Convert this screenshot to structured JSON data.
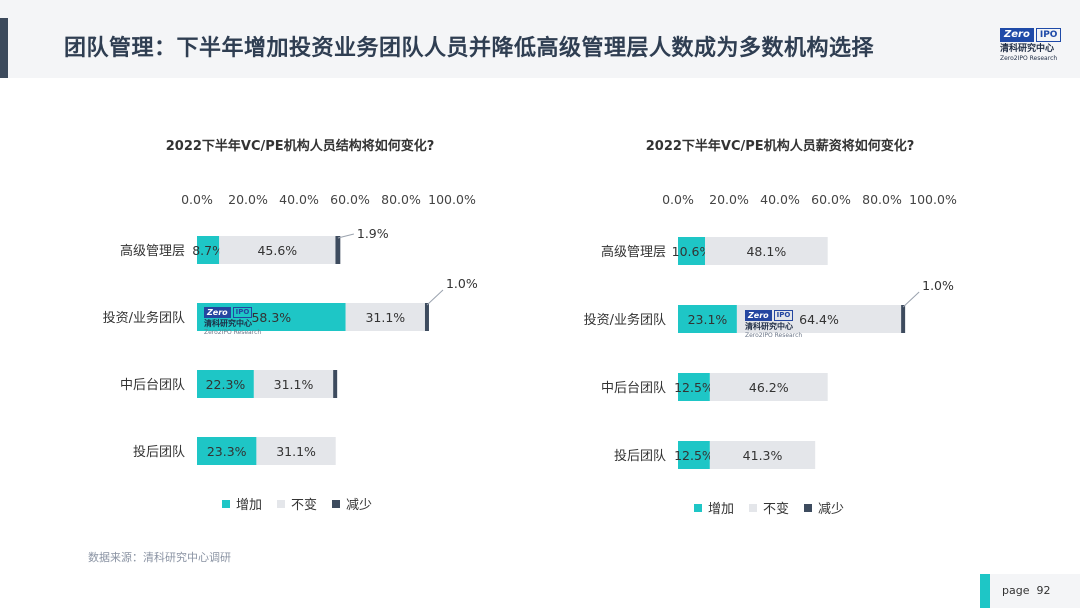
{
  "header": {
    "title": "团队管理：下半年增加投资业务团队人员并降低高级管理层人数成为多数机构选择"
  },
  "logo": {
    "zero": "Zero",
    "ipo": "IPO",
    "cn": "清科研究中心",
    "en": "Zero2IPO Research"
  },
  "colors": {
    "increase": "#1ec6c6",
    "unchanged": "#e4e6ea",
    "decrease": "#3d4b5e"
  },
  "chart_data": [
    {
      "type": "bar",
      "orientation": "horizontal",
      "stacked": true,
      "title": "2022下半年VC/PE机构人员结构将如何变化?",
      "categories": [
        "高级管理层",
        "投资/业务团队",
        "中后台团队",
        "投后团队"
      ],
      "x_ticks": [
        "0.0%",
        "20.0%",
        "40.0%",
        "60.0%",
        "80.0%",
        "100.0%"
      ],
      "xlim": [
        0,
        100
      ],
      "legend_position": "bottom",
      "series": [
        {
          "name": "增加",
          "values": [
            8.7,
            58.3,
            22.3,
            23.3
          ],
          "labels": [
            "8.7%",
            "58.3%",
            "22.3%",
            "23.3%"
          ]
        },
        {
          "name": "不变",
          "values": [
            45.6,
            31.1,
            31.1,
            31.1
          ],
          "labels": [
            "45.6%",
            "31.1%",
            "31.1%",
            "31.1%"
          ]
        },
        {
          "name": "减少",
          "values": [
            1.9,
            1.0,
            1.0,
            0
          ],
          "labels": [
            "1.9%",
            "1.0%",
            "",
            ""
          ]
        }
      ]
    },
    {
      "type": "bar",
      "orientation": "horizontal",
      "stacked": true,
      "title": "2022下半年VC/PE机构人员薪资将如何变化?",
      "categories": [
        "高级管理层",
        "投资/业务团队",
        "中后台团队",
        "投后团队"
      ],
      "x_ticks": [
        "0.0%",
        "20.0%",
        "40.0%",
        "60.0%",
        "80.0%",
        "100.0%"
      ],
      "xlim": [
        0,
        100
      ],
      "legend_position": "bottom",
      "series": [
        {
          "name": "增加",
          "values": [
            10.6,
            23.1,
            12.5,
            12.5
          ],
          "labels": [
            "10.6%",
            "23.1%",
            "12.5%",
            "12.5%"
          ]
        },
        {
          "name": "不变",
          "values": [
            48.1,
            64.4,
            46.2,
            41.3
          ],
          "labels": [
            "48.1%",
            "64.4%",
            "46.2%",
            "41.3%"
          ]
        },
        {
          "name": "减少",
          "values": [
            0,
            1.0,
            0,
            0
          ],
          "labels": [
            "",
            "1.0%",
            "",
            ""
          ]
        }
      ]
    }
  ],
  "source": "数据来源：清科研究中心调研",
  "footer": {
    "page_label": "page",
    "page_number": "92"
  }
}
